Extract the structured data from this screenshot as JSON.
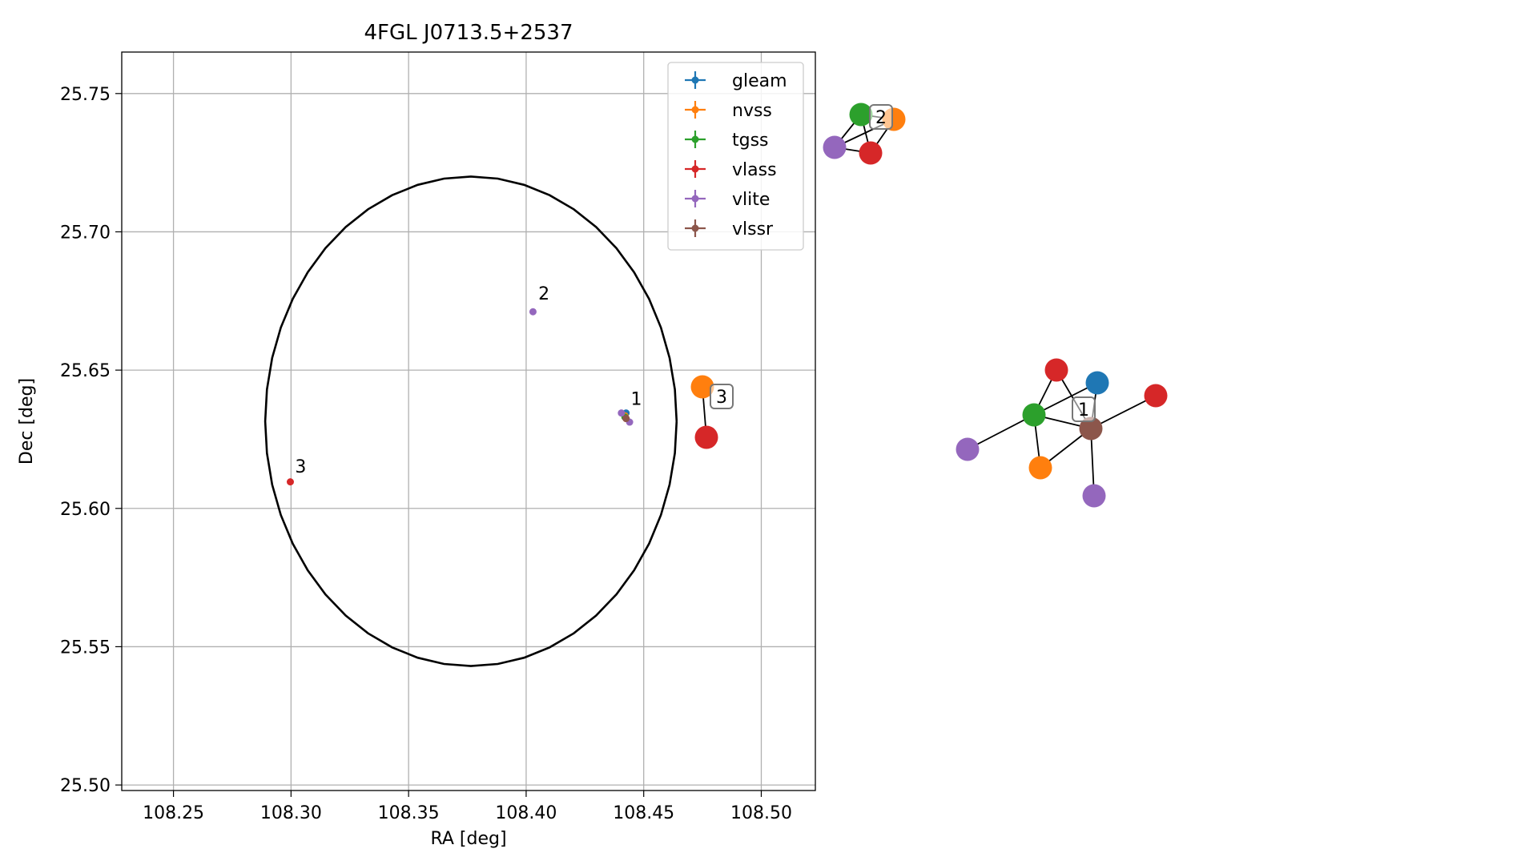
{
  "chart_data": [
    {
      "type": "scatter",
      "title": "4FGL J0713.5+2537",
      "xlabel": "RA [deg]",
      "ylabel": "Dec [deg]",
      "xlim": [
        108.228,
        108.523
      ],
      "ylim": [
        25.498,
        25.765
      ],
      "xticks": [
        108.25,
        108.3,
        108.35,
        108.4,
        108.45,
        108.5
      ],
      "xtick_labels": [
        "108.25",
        "108.30",
        "108.35",
        "108.40",
        "108.45",
        "108.50"
      ],
      "yticks": [
        25.5,
        25.55,
        25.6,
        25.65,
        25.7,
        25.75
      ],
      "ytick_labels": [
        "25.50",
        "25.55",
        "25.60",
        "25.65",
        "25.70",
        "25.75"
      ],
      "grid": true,
      "legend_position": "top-right",
      "ellipse": {
        "center": [
          108.3765,
          25.6315
        ],
        "semi_axis_ra": 0.0875,
        "semi_axis_dec": 0.0885,
        "color": "#000000"
      },
      "series": [
        {
          "name": "gleam",
          "color": "#1f77b4",
          "points": [
            [
              108.4425,
              25.6345
            ]
          ]
        },
        {
          "name": "nvss",
          "color": "#ff7f0e",
          "points": [
            [
              108.442,
              25.6335
            ]
          ]
        },
        {
          "name": "tgss",
          "color": "#2ca02c",
          "points": [
            [
              108.442,
              25.633
            ]
          ]
        },
        {
          "name": "vlass",
          "color": "#d62728",
          "points": [
            [
              108.4425,
              25.6325
            ],
            [
              108.2997,
              25.6096
            ]
          ]
        },
        {
          "name": "vlite",
          "color": "#9467bd",
          "points": [
            [
              108.4405,
              25.6345
            ],
            [
              108.444,
              25.6312
            ],
            [
              108.4029,
              25.6711
            ]
          ]
        },
        {
          "name": "vlssr",
          "color": "#8c564b",
          "points": [
            [
              108.4425,
              25.6325
            ]
          ]
        }
      ],
      "annotations": [
        {
          "text": "1",
          "x": 108.4445,
          "y": 25.6375
        },
        {
          "text": "2",
          "x": 108.4052,
          "y": 25.6755
        },
        {
          "text": "3",
          "x": 108.3017,
          "y": 25.613
        }
      ]
    },
    {
      "type": "network",
      "labels": [
        {
          "text": "2",
          "node": "c2_tgss",
          "dx": 25,
          "dy": 3
        },
        {
          "text": "3",
          "node": "c3_nvss",
          "dx": 24,
          "dy": 12
        },
        {
          "text": "1",
          "node": "c1_vlssr",
          "dx": -9,
          "dy": -24
        }
      ],
      "nodes": [
        {
          "id": "c2_tgss",
          "color": "#2ca02c",
          "px": [
            1075,
            143
          ]
        },
        {
          "id": "c2_nvss",
          "color": "#ff7f0e",
          "px": [
            1116,
            149
          ]
        },
        {
          "id": "c2_vlite",
          "color": "#9467bd",
          "px": [
            1042,
            184
          ]
        },
        {
          "id": "c2_vlass",
          "color": "#d62728",
          "px": [
            1087,
            191
          ]
        },
        {
          "id": "c3_nvss",
          "color": "#ff7f0e",
          "px": [
            877,
            483
          ]
        },
        {
          "id": "c3_vlass",
          "color": "#d62728",
          "px": [
            882,
            546
          ]
        },
        {
          "id": "c1_vlass1",
          "color": "#d62728",
          "px": [
            1319,
            462
          ]
        },
        {
          "id": "c1_gleam",
          "color": "#1f77b4",
          "px": [
            1370,
            478
          ]
        },
        {
          "id": "c1_vlass2",
          "color": "#d62728",
          "px": [
            1443,
            494
          ]
        },
        {
          "id": "c1_tgss",
          "color": "#2ca02c",
          "px": [
            1291,
            518
          ]
        },
        {
          "id": "c1_vlssr",
          "color": "#8c564b",
          "px": [
            1362,
            535
          ]
        },
        {
          "id": "c1_vlite1",
          "color": "#9467bd",
          "px": [
            1208,
            561
          ]
        },
        {
          "id": "c1_nvss",
          "color": "#ff7f0e",
          "px": [
            1299,
            584
          ]
        },
        {
          "id": "c1_vlite2",
          "color": "#9467bd",
          "px": [
            1366,
            619
          ]
        }
      ],
      "edges": [
        [
          "c2_tgss",
          "c2_nvss"
        ],
        [
          "c2_tgss",
          "c2_vlite"
        ],
        [
          "c2_tgss",
          "c2_vlass"
        ],
        [
          "c2_nvss",
          "c2_vlite"
        ],
        [
          "c2_nvss",
          "c2_vlass"
        ],
        [
          "c2_vlite",
          "c2_vlass"
        ],
        [
          "c3_nvss",
          "c3_vlass"
        ],
        [
          "c1_vlass1",
          "c1_tgss"
        ],
        [
          "c1_vlass1",
          "c1_vlssr"
        ],
        [
          "c1_gleam",
          "c1_tgss"
        ],
        [
          "c1_gleam",
          "c1_vlssr"
        ],
        [
          "c1_vlass2",
          "c1_vlssr"
        ],
        [
          "c1_tgss",
          "c1_vlssr"
        ],
        [
          "c1_tgss",
          "c1_vlite1"
        ],
        [
          "c1_tgss",
          "c1_nvss"
        ],
        [
          "c1_vlssr",
          "c1_nvss"
        ],
        [
          "c1_vlssr",
          "c1_vlite2"
        ]
      ]
    }
  ]
}
